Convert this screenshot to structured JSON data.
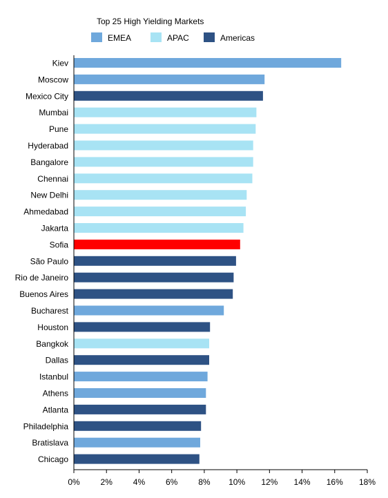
{
  "chart_data": {
    "type": "bar",
    "orientation": "horizontal",
    "title": "Top 25 High Yielding Markets",
    "xlabel": "",
    "ylabel": "",
    "xlim": [
      0,
      18
    ],
    "xticks": [
      0,
      2,
      4,
      6,
      8,
      10,
      12,
      14,
      16,
      18
    ],
    "xtick_suffix": "%",
    "grid": false,
    "legend_position": "top",
    "legend": [
      {
        "name": "EMEA",
        "color": "#6fa8dc"
      },
      {
        "name": "APAC",
        "color": "#a8e3f4"
      },
      {
        "name": "Americas",
        "color": "#2e5284"
      }
    ],
    "highlight_color": "#ff0000",
    "bars": [
      {
        "label": "Kiev",
        "value": 16.4,
        "region": "EMEA"
      },
      {
        "label": "Moscow",
        "value": 11.7,
        "region": "EMEA"
      },
      {
        "label": "Mexico City",
        "value": 11.6,
        "region": "Americas"
      },
      {
        "label": "Mumbai",
        "value": 11.2,
        "region": "APAC"
      },
      {
        "label": "Pune",
        "value": 11.15,
        "region": "APAC"
      },
      {
        "label": "Hyderabad",
        "value": 11.0,
        "region": "APAC"
      },
      {
        "label": "Bangalore",
        "value": 11.0,
        "region": "APAC"
      },
      {
        "label": "Chennai",
        "value": 10.95,
        "region": "APAC"
      },
      {
        "label": "New Delhi",
        "value": 10.6,
        "region": "APAC"
      },
      {
        "label": "Ahmedabad",
        "value": 10.55,
        "region": "APAC"
      },
      {
        "label": "Jakarta",
        "value": 10.4,
        "region": "APAC"
      },
      {
        "label": "Sofia",
        "value": 10.2,
        "region": "EMEA",
        "highlight": true
      },
      {
        "label": "São Paulo",
        "value": 9.95,
        "region": "Americas"
      },
      {
        "label": "Rio de Janeiro",
        "value": 9.8,
        "region": "Americas"
      },
      {
        "label": "Buenos Aires",
        "value": 9.75,
        "region": "Americas"
      },
      {
        "label": "Bucharest",
        "value": 9.2,
        "region": "EMEA"
      },
      {
        "label": "Houston",
        "value": 8.35,
        "region": "Americas"
      },
      {
        "label": "Bangkok",
        "value": 8.3,
        "region": "APAC"
      },
      {
        "label": "Dallas",
        "value": 8.3,
        "region": "Americas"
      },
      {
        "label": "Istanbul",
        "value": 8.2,
        "region": "EMEA"
      },
      {
        "label": "Athens",
        "value": 8.1,
        "region": "EMEA"
      },
      {
        "label": "Atlanta",
        "value": 8.1,
        "region": "Americas"
      },
      {
        "label": "Philadelphia",
        "value": 7.8,
        "region": "Americas"
      },
      {
        "label": "Bratislava",
        "value": 7.75,
        "region": "EMEA"
      },
      {
        "label": "Chicago",
        "value": 7.7,
        "region": "Americas"
      }
    ]
  }
}
